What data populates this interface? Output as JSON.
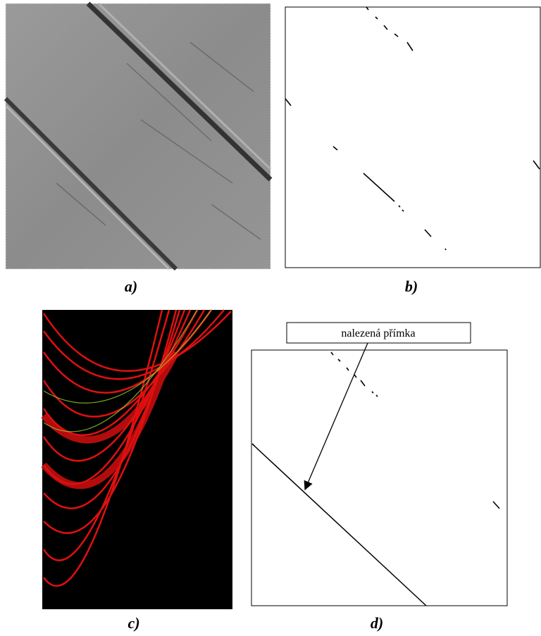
{
  "captions": [
    "a)",
    "b)",
    "c)",
    "d)"
  ],
  "annotation": "nalezená přímka"
}
